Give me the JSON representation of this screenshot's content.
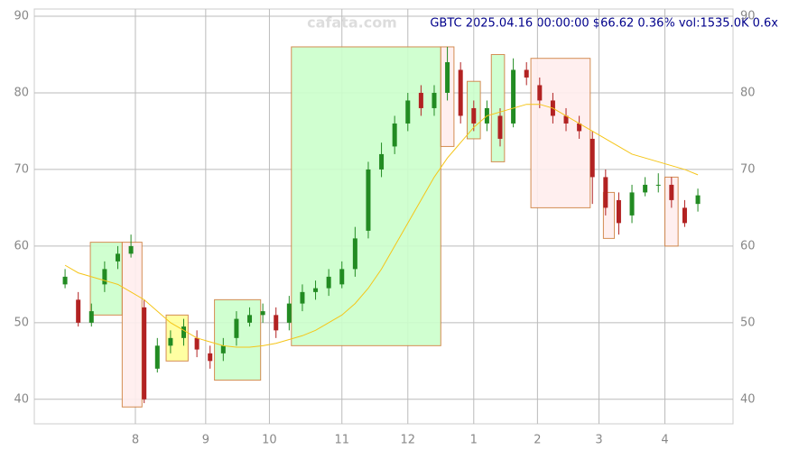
{
  "chart_data": {
    "type": "candlestick",
    "title": "GBTC 2025.04.16 00:00:00 $66.62 0.36% vol:1535.0K 0.6x",
    "watermark": "cafata.com",
    "x": [
      0,
      6,
      12,
      18,
      24,
      30,
      36,
      42,
      48,
      54,
      60,
      66,
      72,
      78,
      84,
      90,
      96,
      102,
      108,
      114,
      120,
      126,
      132,
      138,
      144,
      150,
      156,
      162,
      168,
      174,
      180,
      186,
      192,
      198,
      204,
      210,
      216,
      222,
      228,
      234,
      240,
      246,
      252,
      258,
      264,
      270,
      276,
      282,
      288
    ],
    "open": [
      55,
      53,
      50,
      55,
      58,
      59,
      52,
      44,
      47,
      48,
      48,
      46,
      46,
      48,
      50,
      51,
      51,
      50,
      52.5,
      54,
      54.5,
      55,
      57,
      62,
      70,
      73,
      76,
      80,
      78,
      80,
      83,
      78,
      76,
      77,
      76,
      83,
      81,
      79,
      77,
      76,
      74,
      69,
      66,
      64,
      67,
      68,
      68,
      65,
      65.5
    ],
    "high": [
      57,
      54,
      52.5,
      58,
      60,
      61.5,
      53,
      48,
      49,
      50.5,
      49,
      47,
      48,
      51.5,
      52,
      52.5,
      52,
      53.5,
      55,
      55.5,
      57,
      58,
      62.5,
      71,
      73.5,
      77,
      80,
      81,
      81,
      86,
      84,
      79,
      79,
      78,
      84.5,
      84,
      82,
      80,
      78,
      77,
      75,
      70,
      67,
      68,
      69,
      69.5,
      69,
      66,
      67.5
    ],
    "low": [
      54.5,
      49.5,
      49.5,
      54,
      57,
      58.5,
      39.5,
      43.5,
      46,
      47,
      45.5,
      44,
      45,
      47,
      49.5,
      50,
      48,
      49,
      51.5,
      53,
      53.5,
      54.5,
      56,
      61,
      69,
      72,
      75,
      77,
      77,
      79,
      76,
      75,
      75,
      73,
      75.5,
      81,
      78,
      76,
      75,
      74,
      65.5,
      64,
      61.5,
      63,
      66.5,
      67,
      65,
      62.5,
      64.5
    ],
    "close": [
      56,
      50,
      51.5,
      57,
      59,
      60,
      40,
      47,
      48,
      49.5,
      46.5,
      45,
      47,
      50.5,
      51,
      51.5,
      49,
      52.5,
      54,
      54.5,
      56,
      57,
      61,
      70,
      72,
      76,
      79,
      78,
      80,
      84,
      77,
      76,
      78,
      74,
      83,
      82,
      79,
      77,
      76,
      75,
      69,
      65,
      63,
      67,
      68,
      68,
      66,
      63,
      66.62
    ],
    "up_color": "#228b22",
    "down_color": "#b22222",
    "ma": {
      "color": "#f5c518",
      "values": [
        57.5,
        56.5,
        56,
        55.5,
        55,
        54,
        53,
        51.5,
        50,
        49,
        48,
        47.5,
        47,
        46.8,
        46.8,
        47,
        47.3,
        47.8,
        48.3,
        49,
        50,
        51,
        52.5,
        54.5,
        57,
        60,
        63,
        66,
        69,
        71.5,
        73.5,
        75.5,
        77,
        77.5,
        78,
        78.5,
        78.5,
        78,
        77,
        76,
        75,
        74,
        73,
        72,
        71.5,
        71,
        70.5,
        70,
        69.3
      ]
    },
    "zones": [
      {
        "x": [
          11.5,
          26
        ],
        "y": [
          51,
          60.5
        ],
        "color": "#ccffcc"
      },
      {
        "x": [
          26,
          35
        ],
        "y": [
          39,
          60.5
        ],
        "color": "#ffeeee"
      },
      {
        "x": [
          46,
          56
        ],
        "y": [
          45,
          51
        ],
        "color": "#ffff99"
      },
      {
        "x": [
          68,
          89
        ],
        "y": [
          42.5,
          53
        ],
        "color": "#ccffcc"
      },
      {
        "x": [
          103,
          171
        ],
        "y": [
          47,
          86
        ],
        "color": "#ccffcc"
      },
      {
        "x": [
          171,
          177
        ],
        "y": [
          73,
          86
        ],
        "color": "#ffeeee"
      },
      {
        "x": [
          183,
          189
        ],
        "y": [
          74,
          81.5
        ],
        "color": "#ccffcc"
      },
      {
        "x": [
          194,
          200
        ],
        "y": [
          71,
          85
        ],
        "color": "#ccffcc"
      },
      {
        "x": [
          212,
          239
        ],
        "y": [
          65,
          84.5
        ],
        "color": "#ffeeee"
      },
      {
        "x": [
          245,
          250
        ],
        "y": [
          61,
          67
        ],
        "color": "#ffeeee"
      },
      {
        "x": [
          273,
          279
        ],
        "y": [
          60,
          69
        ],
        "color": "#ffeeee"
      }
    ],
    "xlim": [
      -14,
      304
    ],
    "xticks": [
      {
        "value": 32,
        "label": "8"
      },
      {
        "value": 64,
        "label": "9"
      },
      {
        "value": 93,
        "label": "10"
      },
      {
        "value": 126,
        "label": "11"
      },
      {
        "value": 156,
        "label": "12"
      },
      {
        "value": 186,
        "label": "1"
      },
      {
        "value": 215,
        "label": "2"
      },
      {
        "value": 243,
        "label": "3"
      },
      {
        "value": 273,
        "label": "4"
      }
    ],
    "ylim": [
      36.8,
      90.94
    ],
    "yticks": [
      40,
      50,
      60,
      70,
      80,
      90
    ],
    "grid": true
  }
}
